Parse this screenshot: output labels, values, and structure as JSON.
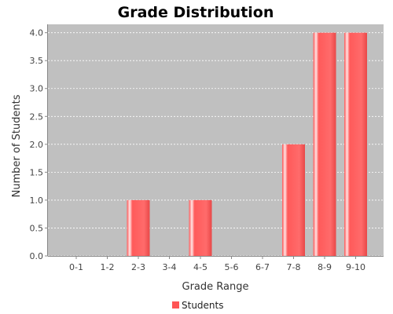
{
  "chart_data": {
    "type": "bar",
    "title": "Grade Distribution",
    "xlabel": "Grade Range",
    "ylabel": "Number of Students",
    "categories": [
      "0-1",
      "1-2",
      "2-3",
      "3-4",
      "4-5",
      "5-6",
      "6-7",
      "7-8",
      "8-9",
      "9-10"
    ],
    "series": [
      {
        "name": "Students",
        "values": [
          0,
          0,
          1,
          0,
          1,
          0,
          0,
          2,
          4,
          4
        ],
        "color": "#ff5555"
      }
    ],
    "ylim": [
      0,
      4.15
    ],
    "yticks": [
      0.0,
      0.5,
      1.0,
      1.5,
      2.0,
      2.5,
      3.0,
      3.5,
      4.0
    ],
    "ytick_labels": [
      "0.0",
      "0.5",
      "1.0",
      "1.5",
      "2.0",
      "2.5",
      "3.0",
      "3.5",
      "4.0"
    ],
    "grid": true,
    "legend": "bottom-center",
    "plot_background": "#c0c0c0"
  }
}
